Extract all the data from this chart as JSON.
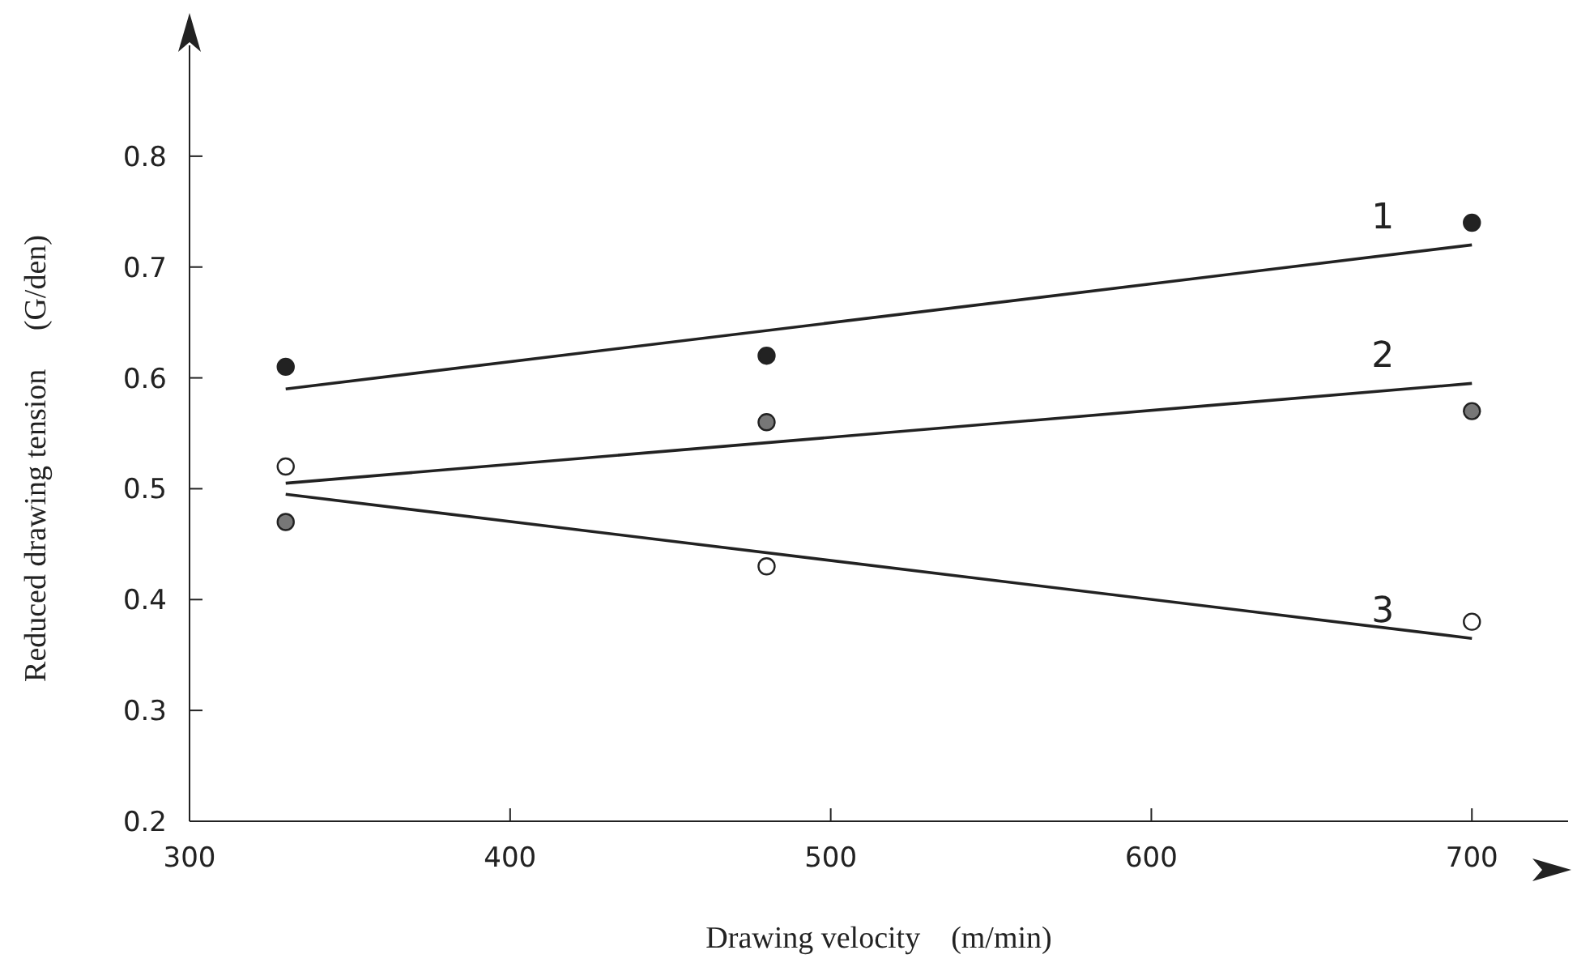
{
  "chart_data": {
    "type": "scatter",
    "xlabel": "Drawing velocity    (m/min)",
    "ylabel": "Reduced drawing tension     (G/den)",
    "xlim": [
      300,
      730
    ],
    "xticks": [
      300,
      400,
      500,
      600,
      700
    ],
    "ylim": [
      0.2,
      0.9
    ],
    "yticks": [
      0.2,
      0.3,
      0.4,
      0.5,
      0.6,
      0.7,
      0.8
    ],
    "grid": false,
    "legend": false,
    "marker": "circle",
    "series": [
      {
        "color": "#222222",
        "x": [
          330,
          480,
          700
        ],
        "values": [
          0.61,
          0.62,
          0.74
        ]
      },
      {
        "color": "#777777",
        "x": [
          330,
          480,
          700
        ],
        "values": [
          0.47,
          0.56,
          0.57
        ]
      },
      {
        "color": "#ffffff",
        "x": [
          330,
          480,
          700
        ],
        "values": [
          0.52,
          0.43,
          0.38
        ]
      },
      {
        "type": "line",
        "name": "1",
        "marker": "none",
        "color": "#222222",
        "x": [
          330,
          700
        ],
        "values": [
          0.59,
          0.72
        ]
      },
      {
        "type": "line",
        "name": "2",
        "marker": "none",
        "color": "#222222",
        "x": [
          330,
          700
        ],
        "values": [
          0.505,
          0.595
        ]
      },
      {
        "type": "line",
        "name": "3",
        "marker": "none",
        "color": "#222222",
        "x": [
          330,
          700
        ],
        "values": [
          0.495,
          0.365
        ]
      }
    ]
  }
}
